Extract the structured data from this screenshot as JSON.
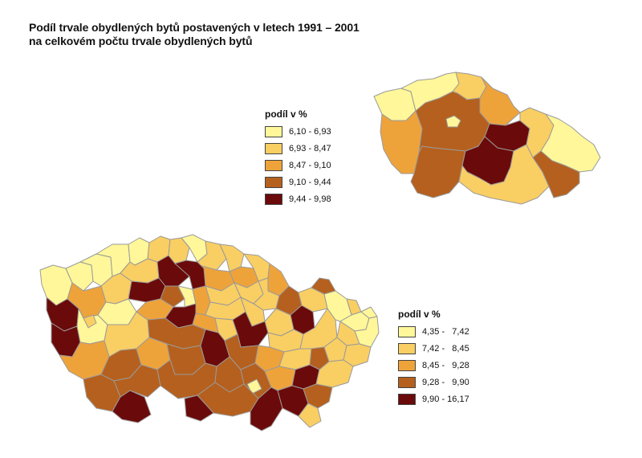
{
  "title": {
    "line1": "Podíl trvale obydlených bytů postavených v letech 1991 – 2001",
    "line2": "na celkovém počtu trvale obydlených bytů"
  },
  "colors": {
    "c1": "#FFF799",
    "c2": "#F9CE63",
    "c3": "#EEA33A",
    "c4": "#B5601E",
    "c5": "#6B0A0A",
    "border": "#9A9A9A"
  },
  "legend_small": {
    "title": "podíl v %",
    "items": [
      {
        "label": "6,10 - 6,93",
        "color": "#FFF799"
      },
      {
        "label": "6,93 - 8,47",
        "color": "#F9CE63"
      },
      {
        "label": "8,47 - 9,10",
        "color": "#EEA33A"
      },
      {
        "label": "9,10 - 9,44",
        "color": "#B5601E"
      },
      {
        "label": "9,44 - 9,98",
        "color": "#6B0A0A"
      }
    ]
  },
  "legend_large": {
    "title": "podíl v %",
    "items": [
      {
        "label": "4,35 -   7,42",
        "color": "#FFF799"
      },
      {
        "label": "7,42 -   8,45",
        "color": "#F9CE63"
      },
      {
        "label": "8,45 -   9,28",
        "color": "#EEA33A"
      },
      {
        "label": "9,28 -   9,90",
        "color": "#B5601E"
      },
      {
        "label": "9,90 - 16,17",
        "color": "#6B0A0A"
      }
    ]
  }
}
